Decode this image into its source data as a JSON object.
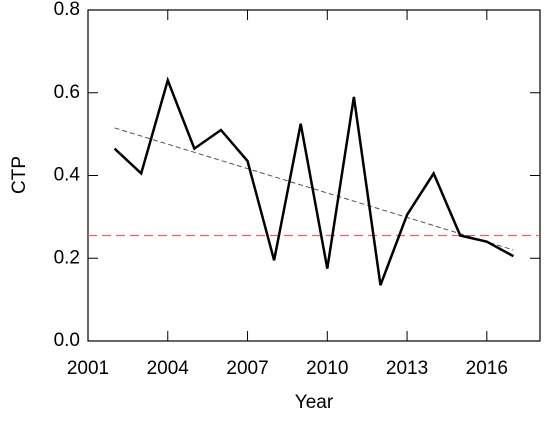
{
  "chart_data": {
    "type": "line",
    "x_label": "Year",
    "y_label": "CTP",
    "x": [
      2002,
      2003,
      2004,
      2005,
      2006,
      2007,
      2008,
      2009,
      2010,
      2011,
      2012,
      2013,
      2014,
      2015,
      2016,
      2017
    ],
    "values": [
      0.465,
      0.405,
      0.63,
      0.465,
      0.51,
      0.435,
      0.195,
      0.525,
      0.175,
      0.59,
      0.135,
      0.305,
      0.405,
      0.255,
      0.24,
      0.205
    ],
    "color": "#000000",
    "trend": {
      "x": [
        2002,
        2017
      ],
      "values": [
        0.515,
        0.22
      ],
      "color": "#555555"
    },
    "reference_line": {
      "value": 0.255,
      "color": "#e06666"
    },
    "xlim": [
      2001,
      2018
    ],
    "xticks": [
      2001,
      2004,
      2007,
      2010,
      2013,
      2016
    ],
    "ylim": [
      0,
      0.8
    ],
    "yticks": [
      {
        "value": 0,
        "label": "0.0"
      },
      0.2,
      0.4,
      0.6,
      0.8
    ]
  }
}
